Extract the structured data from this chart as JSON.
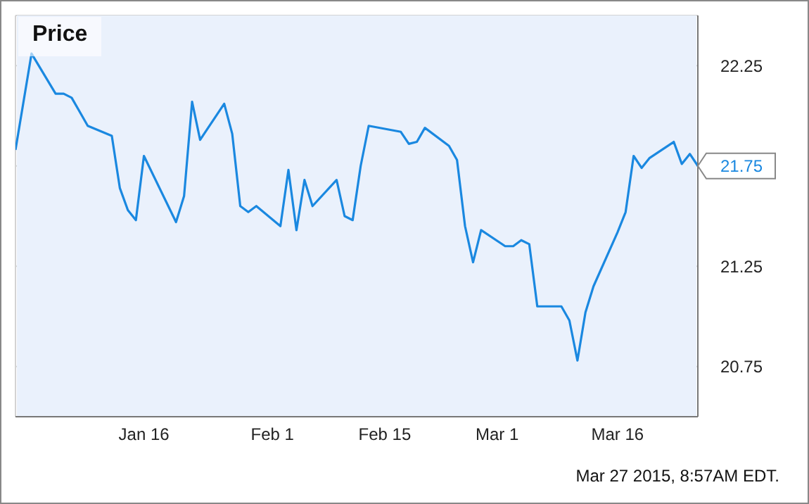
{
  "chart_data": {
    "type": "line",
    "title": "Price",
    "annotations": [
      "Mar 27 2015, 8:57AM EDT."
    ],
    "x": [
      "2014-12-31",
      "2015-01-02",
      "2015-01-05",
      "2015-01-06",
      "2015-01-07",
      "2015-01-08",
      "2015-01-09",
      "2015-01-12",
      "2015-01-13",
      "2015-01-14",
      "2015-01-15",
      "2015-01-16",
      "2015-01-20",
      "2015-01-21",
      "2015-01-22",
      "2015-01-23",
      "2015-01-26",
      "2015-01-27",
      "2015-01-28",
      "2015-01-29",
      "2015-01-30",
      "2015-02-02",
      "2015-02-03",
      "2015-02-04",
      "2015-02-05",
      "2015-02-06",
      "2015-02-09",
      "2015-02-10",
      "2015-02-11",
      "2015-02-12",
      "2015-02-13",
      "2015-02-17",
      "2015-02-18",
      "2015-02-19",
      "2015-02-20",
      "2015-02-23",
      "2015-02-24",
      "2015-02-25",
      "2015-02-26",
      "2015-02-27",
      "2015-03-02",
      "2015-03-03",
      "2015-03-04",
      "2015-03-05",
      "2015-03-06",
      "2015-03-09",
      "2015-03-10",
      "2015-03-11",
      "2015-03-12",
      "2015-03-13",
      "2015-03-16",
      "2015-03-17",
      "2015-03-18",
      "2015-03-19",
      "2015-03-20",
      "2015-03-23",
      "2015-03-24",
      "2015-03-25",
      "2015-03-26"
    ],
    "series": [
      {
        "color": "#1a88e0",
        "values": [
          21.83,
          22.31,
          22.11,
          22.11,
          22.09,
          22.02,
          21.95,
          21.9,
          21.64,
          21.53,
          21.48,
          21.8,
          21.47,
          21.6,
          22.07,
          21.88,
          22.06,
          21.91,
          21.55,
          21.52,
          21.55,
          21.45,
          21.73,
          21.43,
          21.68,
          21.55,
          21.68,
          21.5,
          21.48,
          21.75,
          21.95,
          21.92,
          21.86,
          21.87,
          21.94,
          21.85,
          21.78,
          21.45,
          21.27,
          21.43,
          21.35,
          21.35,
          21.38,
          21.36,
          21.05,
          21.05,
          20.98,
          20.78,
          21.02,
          21.15,
          21.42,
          21.52,
          21.8,
          21.74,
          21.79,
          21.87,
          21.76,
          21.81,
          21.75
        ],
        "value_labels": [
          null,
          null,
          null,
          null,
          null,
          null,
          null,
          null,
          null,
          null,
          null,
          null,
          null,
          null,
          null,
          null,
          null,
          null,
          null,
          null,
          null,
          null,
          null,
          null,
          null,
          null,
          null,
          null,
          null,
          null,
          null,
          null,
          null,
          null,
          null,
          null,
          null,
          null,
          null,
          null,
          null,
          null,
          null,
          null,
          null,
          null,
          null,
          null,
          null,
          null,
          null,
          null,
          null,
          null,
          null,
          null,
          null,
          null,
          "21.75"
        ]
      }
    ],
    "xlim": [
      "2014-12-31",
      "2015-03-26"
    ],
    "xticks": [
      {
        "value": "2015-01-16",
        "label": "Jan 16"
      },
      {
        "value": "2015-02-01",
        "label": "Feb 1"
      },
      {
        "value": "2015-02-15",
        "label": "Feb 15"
      },
      {
        "value": "2015-03-01",
        "label": "Mar 1"
      },
      {
        "value": "2015-03-16",
        "label": "Mar 16"
      }
    ],
    "ylim": [
      20.5,
      22.5
    ],
    "yticks": [
      20.75,
      21.25,
      21.75,
      22.25
    ],
    "grid": true,
    "marker": "none",
    "line_style": "solid",
    "legend": false
  }
}
